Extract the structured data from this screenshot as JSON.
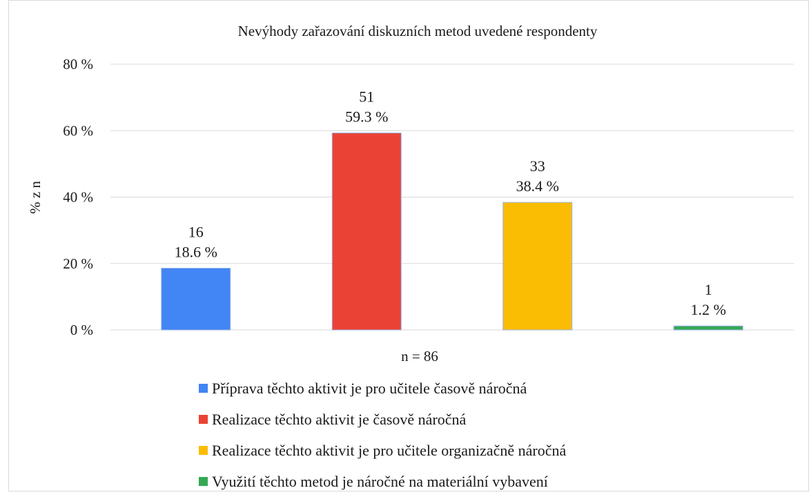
{
  "chart_data": {
    "type": "bar",
    "title": "Nevýhody zařazování diskuzních metod uvedené respondenty",
    "ylabel": "% z n",
    "xlabel": "n = 86",
    "ylim": [
      0,
      80
    ],
    "yticks": [
      0,
      20,
      40,
      60,
      80
    ],
    "ytick_labels": [
      "0 %",
      "20 %",
      "40 %",
      "60 %",
      "80 %"
    ],
    "grid": true,
    "legend_position": "bottom",
    "categories": [
      "Příprava těchto aktivit je pro učitele časově náročná",
      "Realizace těchto aktivit je časově náročná",
      "Realizace těchto aktivit je pro učitele organizačně náročná",
      "Využití těchto metod je náročné na materiální vybavení"
    ],
    "values": [
      18.6,
      59.3,
      38.4,
      1.2
    ],
    "counts": [
      16,
      51,
      33,
      1
    ],
    "count_labels": [
      "16",
      "51",
      "33",
      "1"
    ],
    "percent_labels": [
      "18.6 %",
      "59.3 %",
      "38.4 %",
      "1.2 %"
    ],
    "colors": [
      "#4285f4",
      "#ea4335",
      "#fbbc04",
      "#34a853"
    ]
  }
}
